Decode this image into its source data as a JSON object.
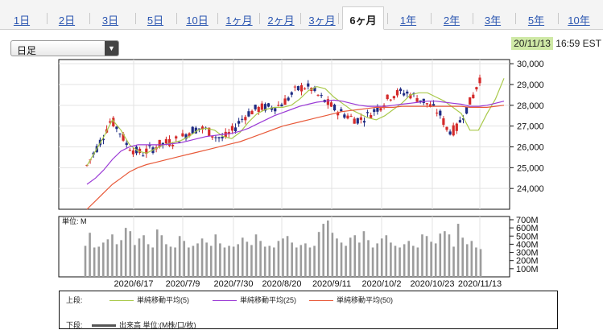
{
  "tabs": [
    "1日",
    "2日",
    "3日",
    "5日",
    "10日",
    "1ヶ月",
    "2ヶ月",
    "3ヶ月",
    "6ヶ月",
    "1年",
    "2年",
    "3年",
    "5年",
    "10年"
  ],
  "active_tab": "6ヶ月",
  "period_select": {
    "value": "日足",
    "arrow": "▼"
  },
  "timestamp": {
    "date": "20/11/13",
    "time": "16:59 EST"
  },
  "volume_unit_label": "単位: M",
  "legend": {
    "upper_label": "上段:",
    "lower_label": "下段:",
    "ma5": "単純移動平均(5)",
    "ma25": "単純移動平均(25)",
    "ma50": "単純移動平均(50)",
    "volume": "出来高 単位:(M株/口/枚)"
  },
  "colors": {
    "up": "#d42a2a",
    "down": "#1f2c83",
    "ma5": "#a9c94a",
    "ma25": "#9b3bd6",
    "ma50": "#e85a3a",
    "volume": "#9c9c9c",
    "accent": "#cfe9a6",
    "link": "#2a55b0"
  },
  "chart_data": [
    {
      "type": "candlestick",
      "title": "",
      "x_ticks": [
        "2020/6/17",
        "2020/7/9",
        "2020/7/30",
        "2020/8/20",
        "2020/9/11",
        "2020/10/2",
        "2020/10/23",
        "2020/11/13"
      ],
      "y_ticks": [
        "30,000",
        "29,000",
        "28,000",
        "27,000",
        "26,000",
        "25,000",
        "24,000"
      ],
      "ylim": [
        23000,
        30200
      ],
      "series": [
        {
          "name": "単純移動平均(5)",
          "values": [
            25100,
            25800,
            26500,
            27300,
            26800,
            26100,
            25800,
            25700,
            25900,
            26100,
            26200,
            26300,
            26500,
            26800,
            26900,
            26800,
            26500,
            26400,
            26700,
            27200,
            27600,
            27800,
            27900,
            27900,
            28000,
            28300,
            28700,
            28900,
            28800,
            28400,
            28100,
            27800,
            27600,
            27400,
            27300,
            27500,
            27800,
            28100,
            28500,
            28600,
            28600,
            28400,
            28200,
            27900,
            27600,
            26800,
            26800,
            27600,
            28300,
            29300
          ]
        },
        {
          "name": "単純移動平均(25)",
          "values": [
            24200,
            24500,
            24900,
            25400,
            25800,
            26000,
            26100,
            26100,
            26100,
            26100,
            26150,
            26200,
            26300,
            26400,
            26500,
            26550,
            26600,
            26650,
            26750,
            26900,
            27100,
            27300,
            27500,
            27650,
            27800,
            27950,
            28050,
            28150,
            28200,
            28250,
            28200,
            28100,
            28000,
            27950,
            27950,
            27950,
            28000,
            28050,
            28100,
            28150,
            28200,
            28200,
            28150,
            28100,
            28050,
            27950,
            27950,
            28000,
            28100,
            28200
          ]
        },
        {
          "name": "単純移動平均(50)",
          "values": [
            23000,
            23400,
            23800,
            24200,
            24500,
            24800,
            25000,
            25150,
            25250,
            25350,
            25450,
            25550,
            25650,
            25750,
            25850,
            25950,
            26050,
            26150,
            26250,
            26400,
            26550,
            26700,
            26850,
            27000,
            27100,
            27200,
            27300,
            27400,
            27500,
            27600,
            27700,
            27750,
            27800,
            27850,
            27900,
            27900,
            27900,
            27950,
            27950,
            27950,
            27950,
            27950,
            27950,
            27950,
            27950,
            27900,
            27900,
            27900,
            27950,
            28000
          ]
        }
      ]
    },
    {
      "type": "bar",
      "title": "",
      "y_ticks": [
        "700M",
        "600M",
        "500M",
        "400M",
        "300M",
        "200M",
        "100M"
      ],
      "ylim": [
        0,
        700
      ],
      "values": [
        380,
        540,
        360,
        370,
        420,
        460,
        520,
        400,
        450,
        600,
        560,
        390,
        470,
        510,
        400,
        360,
        580,
        510,
        400,
        370,
        360,
        500,
        440,
        360,
        380,
        410,
        470,
        420,
        380,
        520,
        410,
        360,
        380,
        370,
        400,
        480,
        430,
        390,
        520,
        440,
        370,
        380,
        360,
        440,
        470,
        500,
        420,
        360,
        390,
        410,
        360,
        380,
        550,
        650,
        690,
        540,
        470,
        420,
        380,
        480,
        510,
        420,
        560,
        450,
        360,
        410,
        470,
        510,
        420,
        380,
        360,
        400,
        440,
        380,
        360,
        520,
        500,
        430,
        410,
        530,
        560,
        520,
        370,
        650,
        480,
        400,
        440,
        360,
        340
      ]
    }
  ]
}
